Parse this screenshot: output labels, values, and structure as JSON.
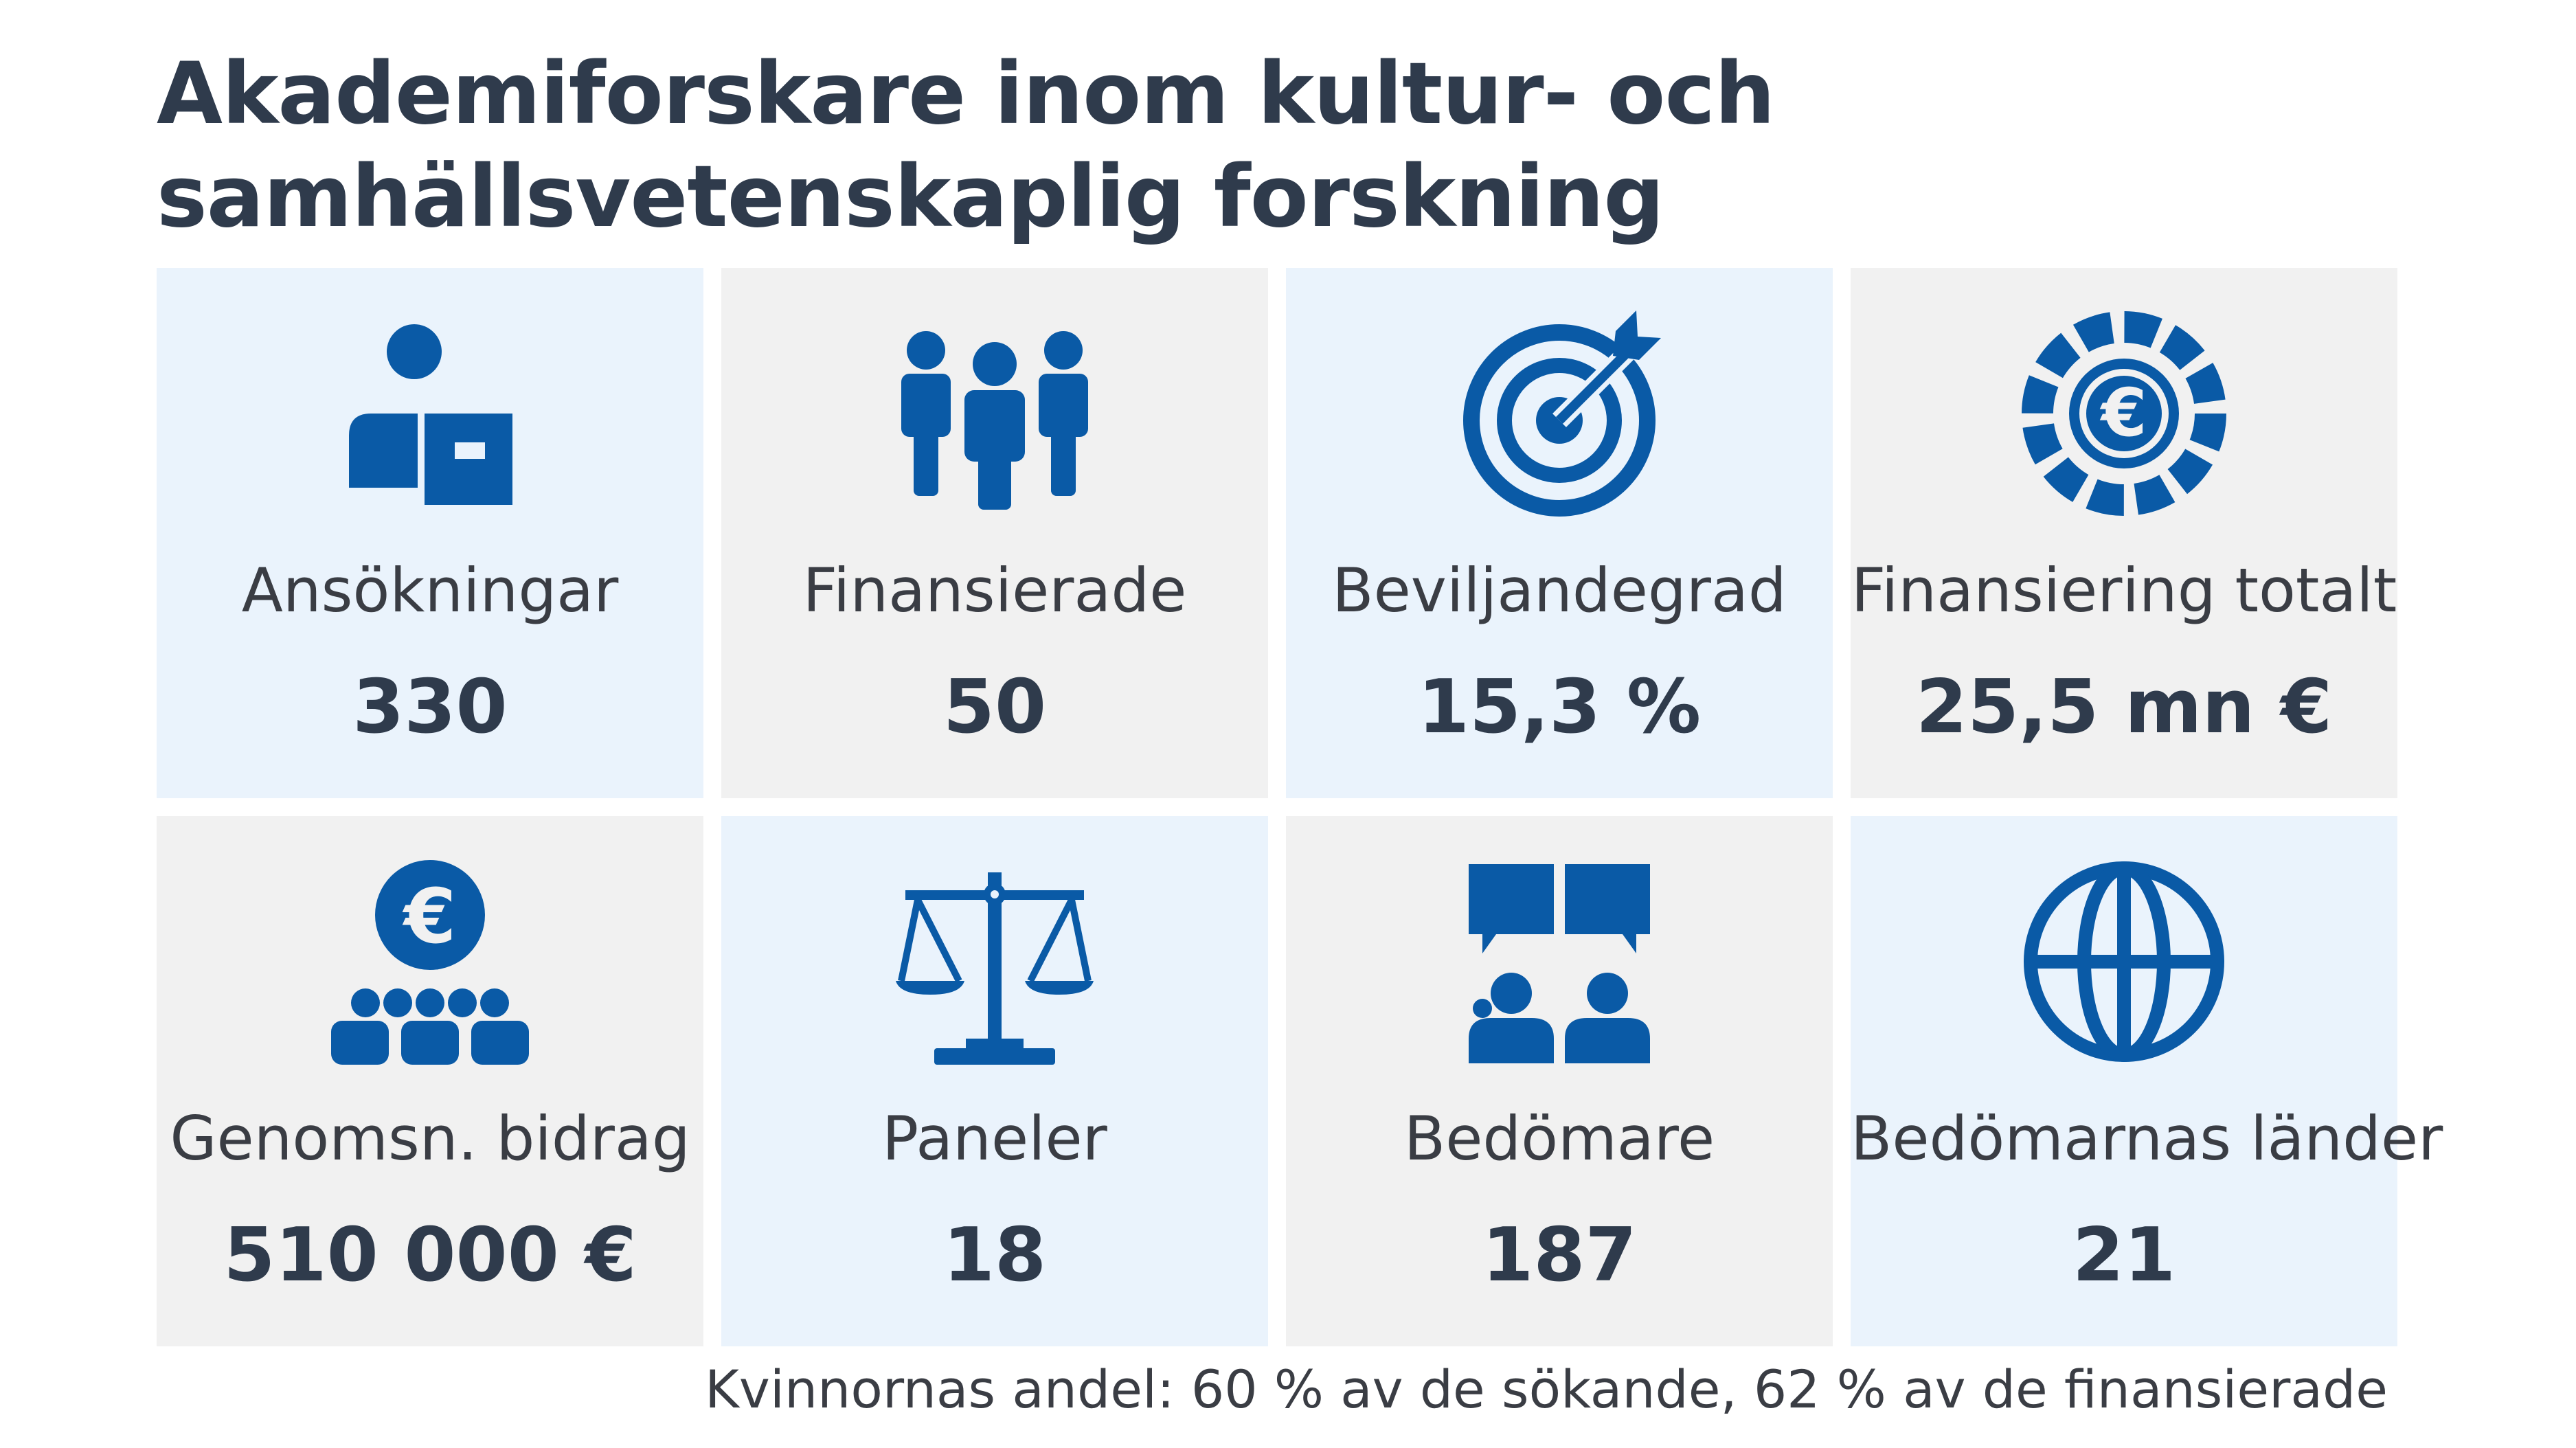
{
  "title": {
    "line1": "Akademiforskare inom kultur- och",
    "line2": "samhällsvetenskaplig forskning"
  },
  "colors": {
    "icon": "#0a5aa6",
    "tile_blue": "#eaf3fc",
    "tile_gray": "#f1f1f1",
    "title": "#2f3b4c"
  },
  "tiles": [
    {
      "label": "Ansökningar",
      "value": "330",
      "icon": "applicant-icon"
    },
    {
      "label": "Finansierade",
      "value": "50",
      "icon": "group-icon"
    },
    {
      "label": "Beviljandegrad",
      "value": "15,3 %",
      "icon": "target-icon"
    },
    {
      "label": "Finansiering totalt",
      "value": "25,5 mn €",
      "icon": "euro-coin-icon"
    },
    {
      "label": "Genomsn. bidrag",
      "value": "510 000 €",
      "icon": "euro-audience-icon"
    },
    {
      "label": "Paneler",
      "value": "18",
      "icon": "scales-icon"
    },
    {
      "label": "Bedömare",
      "value": "187",
      "icon": "reviewers-chat-icon"
    },
    {
      "label": "Bedömarnas länder",
      "value": "21",
      "icon": "globe-icon"
    }
  ],
  "footer": {
    "prefix": "Kvinnornas andel: ",
    "pct1": "60 %",
    "mid": " av de sökande, ",
    "pct2": "62 %",
    "suffix": " av de finansierade"
  }
}
